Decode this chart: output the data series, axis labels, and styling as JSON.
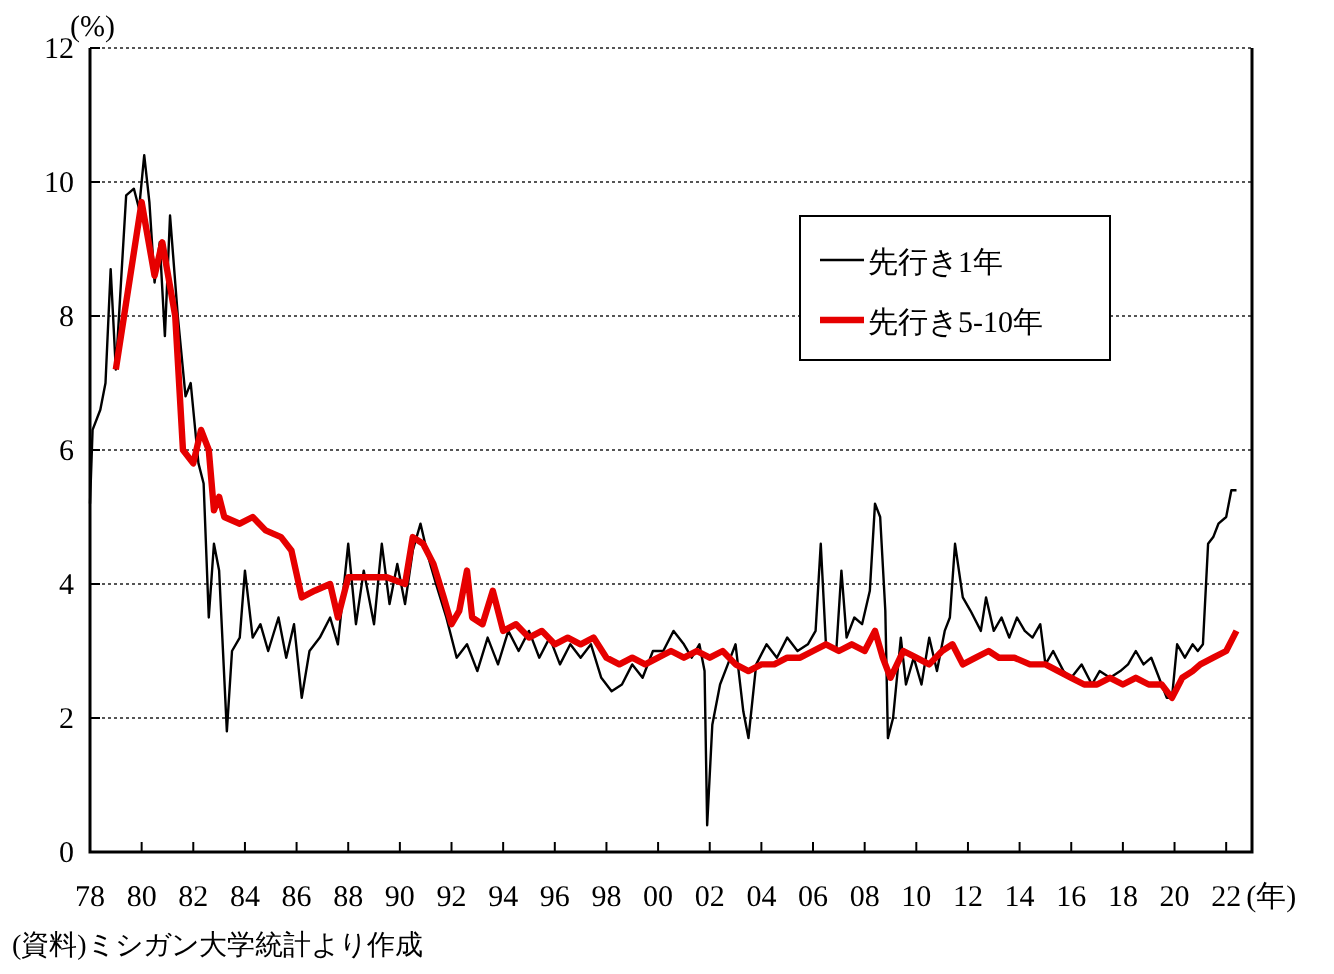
{
  "chart_data": {
    "type": "line",
    "ylabel": "(%)",
    "xlabel": "(年)",
    "annotations": [
      "(資料)ミシガン大学統計より作成"
    ],
    "xlim": [
      1978,
      2023
    ],
    "ylim": [
      0,
      12
    ],
    "yticks": [
      0,
      2,
      4,
      6,
      8,
      10,
      12
    ],
    "xticks": [
      {
        "value": 1978,
        "label": "78"
      },
      {
        "value": 1980,
        "label": "80"
      },
      {
        "value": 1982,
        "label": "82"
      },
      {
        "value": 1984,
        "label": "84"
      },
      {
        "value": 1986,
        "label": "86"
      },
      {
        "value": 1988,
        "label": "88"
      },
      {
        "value": 1990,
        "label": "90"
      },
      {
        "value": 1992,
        "label": "92"
      },
      {
        "value": 1994,
        "label": "94"
      },
      {
        "value": 1996,
        "label": "96"
      },
      {
        "value": 1998,
        "label": "98"
      },
      {
        "value": 2000,
        "label": "00"
      },
      {
        "value": 2002,
        "label": "02"
      },
      {
        "value": 2004,
        "label": "04"
      },
      {
        "value": 2006,
        "label": "06"
      },
      {
        "value": 2008,
        "label": "08"
      },
      {
        "value": 2010,
        "label": "10"
      },
      {
        "value": 2012,
        "label": "12"
      },
      {
        "value": 2014,
        "label": "14"
      },
      {
        "value": 2016,
        "label": "16"
      },
      {
        "value": 2018,
        "label": "18"
      },
      {
        "value": 2020,
        "label": "20"
      },
      {
        "value": 2022,
        "label": "22"
      }
    ],
    "grid": "y",
    "legend": "top right",
    "marker": "none",
    "series": [
      {
        "name": "先行き1年",
        "color": "#000000",
        "x": [
          1978.0,
          1978.1,
          1978.4,
          1978.6,
          1978.8,
          1979.0,
          1979.2,
          1979.4,
          1979.7,
          1979.9,
          1980.1,
          1980.3,
          1980.5,
          1980.7,
          1980.9,
          1981.1,
          1981.4,
          1981.7,
          1981.9,
          1982.2,
          1982.4,
          1982.6,
          1982.8,
          1983.0,
          1983.3,
          1983.5,
          1983.8,
          1984.0,
          1984.3,
          1984.6,
          1984.9,
          1985.3,
          1985.6,
          1985.9,
          1986.2,
          1986.5,
          1986.9,
          1987.3,
          1987.6,
          1988.0,
          1988.3,
          1988.6,
          1989.0,
          1989.3,
          1989.6,
          1989.9,
          1990.2,
          1990.5,
          1990.8,
          1991.1,
          1991.4,
          1991.8,
          1992.2,
          1992.6,
          1993.0,
          1993.4,
          1993.8,
          1994.2,
          1994.6,
          1995.0,
          1995.4,
          1995.8,
          1996.2,
          1996.6,
          1997.0,
          1997.4,
          1997.8,
          1998.2,
          1998.6,
          1999.0,
          1999.4,
          1999.8,
          2000.2,
          2000.6,
          2001.0,
          2001.3,
          2001.6,
          2001.8,
          2001.9,
          2002.1,
          2002.4,
          2002.7,
          2003.0,
          2003.3,
          2003.5,
          2003.8,
          2004.2,
          2004.6,
          2005.0,
          2005.4,
          2005.8,
          2006.1,
          2006.3,
          2006.5,
          2006.9,
          2007.1,
          2007.3,
          2007.6,
          2007.9,
          2008.2,
          2008.4,
          2008.6,
          2008.8,
          2008.9,
          2009.1,
          2009.4,
          2009.6,
          2009.9,
          2010.2,
          2010.5,
          2010.8,
          2011.1,
          2011.3,
          2011.5,
          2011.8,
          2012.1,
          2012.5,
          2012.7,
          2013.0,
          2013.3,
          2013.6,
          2013.9,
          2014.2,
          2014.5,
          2014.8,
          2015.0,
          2015.3,
          2015.7,
          2016.0,
          2016.4,
          2016.8,
          2017.1,
          2017.5,
          2017.9,
          2018.2,
          2018.5,
          2018.8,
          2019.1,
          2019.4,
          2019.7,
          2019.9,
          2020.1,
          2020.4,
          2020.7,
          2020.9,
          2021.1,
          2021.3,
          2021.5,
          2021.7,
          2022.0,
          2022.2,
          2022.4
        ],
        "values": [
          5.2,
          6.3,
          6.6,
          7.0,
          8.7,
          7.2,
          8.5,
          9.8,
          9.9,
          9.6,
          10.4,
          9.7,
          8.5,
          9.1,
          7.7,
          9.5,
          8.0,
          6.8,
          7.0,
          5.8,
          5.5,
          3.5,
          4.6,
          4.2,
          1.8,
          3.0,
          3.2,
          4.2,
          3.2,
          3.4,
          3.0,
          3.5,
          2.9,
          3.4,
          2.3,
          3.0,
          3.2,
          3.5,
          3.1,
          4.6,
          3.4,
          4.2,
          3.4,
          4.6,
          3.7,
          4.3,
          3.7,
          4.5,
          4.9,
          4.4,
          4.0,
          3.5,
          2.9,
          3.1,
          2.7,
          3.2,
          2.8,
          3.3,
          3.0,
          3.3,
          2.9,
          3.2,
          2.8,
          3.1,
          2.9,
          3.1,
          2.6,
          2.4,
          2.5,
          2.8,
          2.6,
          3.0,
          3.0,
          3.3,
          3.1,
          2.9,
          3.1,
          2.7,
          0.4,
          1.9,
          2.5,
          2.8,
          3.1,
          2.1,
          1.7,
          2.8,
          3.1,
          2.9,
          3.2,
          3.0,
          3.1,
          3.3,
          4.6,
          3.1,
          3.0,
          4.2,
          3.2,
          3.5,
          3.4,
          3.9,
          5.2,
          5.0,
          3.6,
          1.7,
          2.0,
          3.2,
          2.5,
          2.9,
          2.5,
          3.2,
          2.7,
          3.3,
          3.5,
          4.6,
          3.8,
          3.6,
          3.3,
          3.8,
          3.3,
          3.5,
          3.2,
          3.5,
          3.3,
          3.2,
          3.4,
          2.8,
          3.0,
          2.7,
          2.6,
          2.8,
          2.5,
          2.7,
          2.6,
          2.7,
          2.8,
          3.0,
          2.8,
          2.9,
          2.6,
          2.3,
          2.3,
          3.1,
          2.9,
          3.1,
          3.0,
          3.1,
          4.6,
          4.7,
          4.9,
          5.0,
          5.4,
          5.4
        ]
      },
      {
        "name": "先行き5-10年",
        "color": "#e60000",
        "x": [
          1979.0,
          1980.0,
          1980.5,
          1980.8,
          1981.3,
          1981.6,
          1982.0,
          1982.3,
          1982.6,
          1982.8,
          1983.0,
          1983.2,
          1983.8,
          1984.3,
          1984.8,
          1985.4,
          1985.8,
          1986.2,
          1986.7,
          1987.3,
          1987.6,
          1988.0,
          1989.5,
          1990.2,
          1990.5,
          1990.9,
          1991.3,
          1991.7,
          1992.0,
          1992.3,
          1992.6,
          1992.8,
          1993.2,
          1993.6,
          1994.0,
          1994.5,
          1995.0,
          1995.5,
          1996.0,
          1996.5,
          1997.0,
          1997.5,
          1998.0,
          1998.5,
          1999.0,
          1999.5,
          2000.0,
          2000.5,
          2001.0,
          2001.5,
          2002.0,
          2002.5,
          2003.0,
          2003.5,
          2004.0,
          2004.5,
          2005.0,
          2005.5,
          2006.0,
          2006.5,
          2007.0,
          2007.5,
          2008.0,
          2008.4,
          2008.7,
          2009.0,
          2009.5,
          2010.0,
          2010.5,
          2011.0,
          2011.4,
          2011.8,
          2012.3,
          2012.8,
          2013.2,
          2013.8,
          2014.4,
          2015.0,
          2015.5,
          2016.0,
          2016.5,
          2017.0,
          2017.5,
          2018.0,
          2018.5,
          2019.0,
          2019.5,
          2019.9,
          2020.3,
          2020.7,
          2021.0,
          2021.5,
          2022.0,
          2022.4
        ],
        "values": [
          7.2,
          9.7,
          8.6,
          9.1,
          8.0,
          6.0,
          5.8,
          6.3,
          6.0,
          5.1,
          5.3,
          5.0,
          4.9,
          5.0,
          4.8,
          4.7,
          4.5,
          3.8,
          3.9,
          4.0,
          3.5,
          4.1,
          4.1,
          4.0,
          4.7,
          4.6,
          4.3,
          3.8,
          3.4,
          3.6,
          4.2,
          3.5,
          3.4,
          3.9,
          3.3,
          3.4,
          3.2,
          3.3,
          3.1,
          3.2,
          3.1,
          3.2,
          2.9,
          2.8,
          2.9,
          2.8,
          2.9,
          3.0,
          2.9,
          3.0,
          2.9,
          3.0,
          2.8,
          2.7,
          2.8,
          2.8,
          2.9,
          2.9,
          3.0,
          3.1,
          3.0,
          3.1,
          3.0,
          3.3,
          2.9,
          2.6,
          3.0,
          2.9,
          2.8,
          3.0,
          3.1,
          2.8,
          2.9,
          3.0,
          2.9,
          2.9,
          2.8,
          2.8,
          2.7,
          2.6,
          2.5,
          2.5,
          2.6,
          2.5,
          2.6,
          2.5,
          2.5,
          2.3,
          2.6,
          2.7,
          2.8,
          2.9,
          3.0,
          3.3
        ]
      }
    ]
  }
}
